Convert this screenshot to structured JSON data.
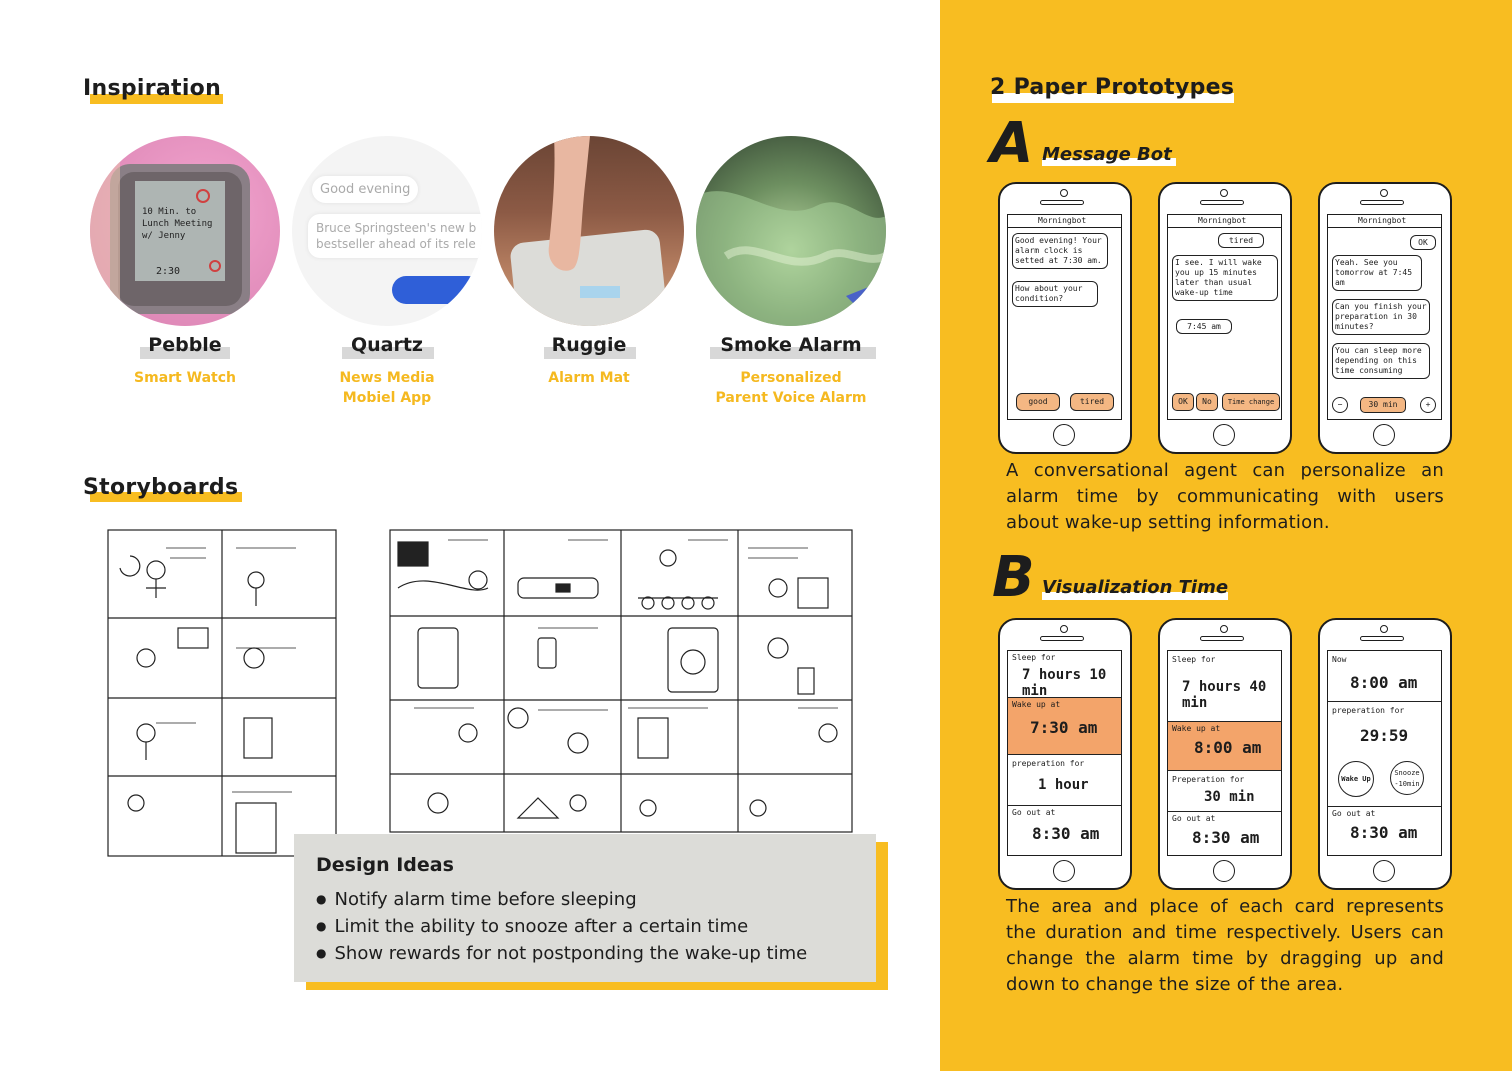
{
  "colors": {
    "accent": "#f8bd21",
    "panel_gray": "#dcdcd8",
    "ink": "#1d1d1d"
  },
  "inspiration": {
    "heading": "Inspiration",
    "items": [
      {
        "title": "Pebble",
        "subtitle": "Smart Watch"
      },
      {
        "title": "Quartz",
        "subtitle": "News Media\nMobiel App",
        "bubbles": [
          "Good evening",
          "Bruce Springsteen's new b",
          "bestseller ahead of its rele"
        ]
      },
      {
        "title": "Ruggie",
        "subtitle": "Alarm Mat"
      },
      {
        "title": "Smoke Alarm",
        "subtitle": "Personalized\nParent Voice Alarm"
      }
    ],
    "pebble_screen": [
      "10 Min. to",
      "Lunch Meeting",
      "w/ Jenny",
      "2:30"
    ]
  },
  "storyboards": {
    "heading": "Storyboards",
    "design_ideas": {
      "title": "Design Ideas",
      "items": [
        "Notify alarm time before sleeping",
        "Limit the ability to snooze after a certain time",
        "Show rewards for not postponding the wake-up time"
      ]
    }
  },
  "prototypes": {
    "heading": "2 Paper Prototypes",
    "a": {
      "letter": "A",
      "title": "Message Bot",
      "screens": [
        {
          "header": "Morningbot",
          "messages": [
            "Good evening! Your alarm clock is setted at 7:30 am.",
            "How about your condition?"
          ],
          "buttons": [
            "good",
            "tired"
          ]
        },
        {
          "header": "Morningbot",
          "messages": [
            "tired",
            "I see. I will wake you up 15 minutes later than usual wake-up time",
            "7:45 am"
          ],
          "buttons": [
            "OK",
            "No",
            "Time change"
          ]
        },
        {
          "header": "Morningbot",
          "messages": [
            "OK",
            "Yeah. See you tomorrow at 7:45 am",
            "Can you finish your preparation in 30 minutes?",
            "You can sleep more depending on this time consuming"
          ],
          "buttons": [
            "−",
            "30 min",
            "+"
          ]
        }
      ],
      "description": [
        "A conversational agent can personalize an",
        "alarm time by communicating with users",
        "about wake-up setting information."
      ]
    },
    "b": {
      "letter": "B",
      "title": "Visualization Time",
      "screens": [
        {
          "cards": [
            {
              "label": "Sleep for",
              "value": "7 hours 10 min"
            },
            {
              "label": "Wake up at",
              "value": "7:30 am"
            },
            {
              "label": "preperation for",
              "value": "1 hour"
            },
            {
              "label": "Go out at",
              "value": "8:30 am"
            }
          ]
        },
        {
          "cards": [
            {
              "label": "Sleep for",
              "value": "7 hours 40 min"
            },
            {
              "label": "Wake up at",
              "value": "8:00 am"
            },
            {
              "label": "Preperation for",
              "value": "30 min"
            },
            {
              "label": "Go out at",
              "value": "8:30 am"
            }
          ]
        },
        {
          "cards": [
            {
              "label": "Now",
              "value": "8:00 am"
            },
            {
              "label": "preperation for",
              "value": "29:59"
            },
            {
              "label": "Wake Up",
              "value": "Snooze -10min"
            },
            {
              "label": "Go out at",
              "value": "8:30 am"
            }
          ]
        }
      ],
      "description": [
        "The area and place of each card represents",
        "the duration and time respectively. Users can",
        "change the alarm time by dragging up and",
        "down to change the size of the area."
      ]
    }
  }
}
